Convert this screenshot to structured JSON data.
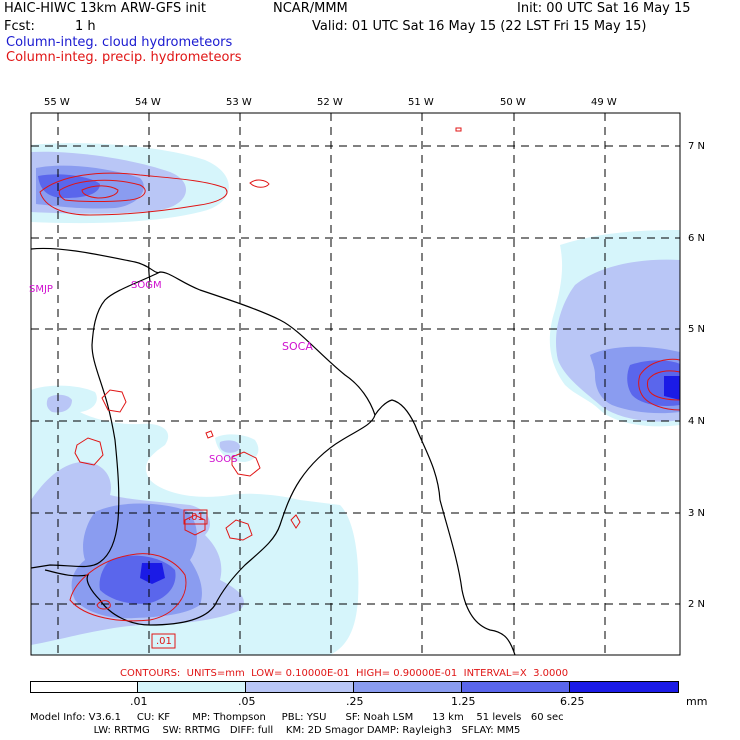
{
  "header": {
    "title": "HAIC-HIWC 13km ARW-GFS init",
    "org": "NCAR/MMM",
    "init": "Init: 00 UTC Sat 16 May 15",
    "fcst_label": "Fcst:",
    "fcst_value": "1 h",
    "valid": "Valid: 01 UTC Sat 16 May 15 (22 LST Fri 15 May 15)",
    "field_cloud": "Column-integ. cloud hydrometeors",
    "field_precip": "Column-integ. precip. hydrometeors"
  },
  "map": {
    "lon_labels": [
      "55 W",
      "54 W",
      "53 W",
      "52 W",
      "51 W",
      "50 W",
      "49 W"
    ],
    "lat_labels": [
      "7 N",
      "6 N",
      "5 N",
      "4 N",
      "3 N",
      "2 N"
    ],
    "stations": [
      "SMJP",
      "SOGM",
      "SOCA",
      "SOOS"
    ],
    "contour_labels": [
      ".01",
      ".01"
    ]
  },
  "contours_info": "CONTOURS:  UNITS=mm  LOW= 0.10000E-01  HIGH= 0.90000E-01  INTERVAL=X  3.0000",
  "colorbar": {
    "labels": [
      ".01",
      ".05",
      ".25",
      "1.25",
      "6.25"
    ],
    "unit": "mm",
    "colors": [
      "#ffffff",
      "#d6f5fb",
      "#b9c6f6",
      "#8a9cf0",
      "#5a66ec",
      "#1b1be6"
    ]
  },
  "model_info": {
    "line1": "Model Info: V3.6.1     CU: KF       MP: Thompson     PBL: YSU      SF: Noah LSM      13 km    51 levels   60 sec",
    "line2": "                    LW: RRTMG    SW: RRTMG   DIFF: full    KM: 2D Smagor DAMP: Rayleigh3   SFLAY: MM5"
  }
}
